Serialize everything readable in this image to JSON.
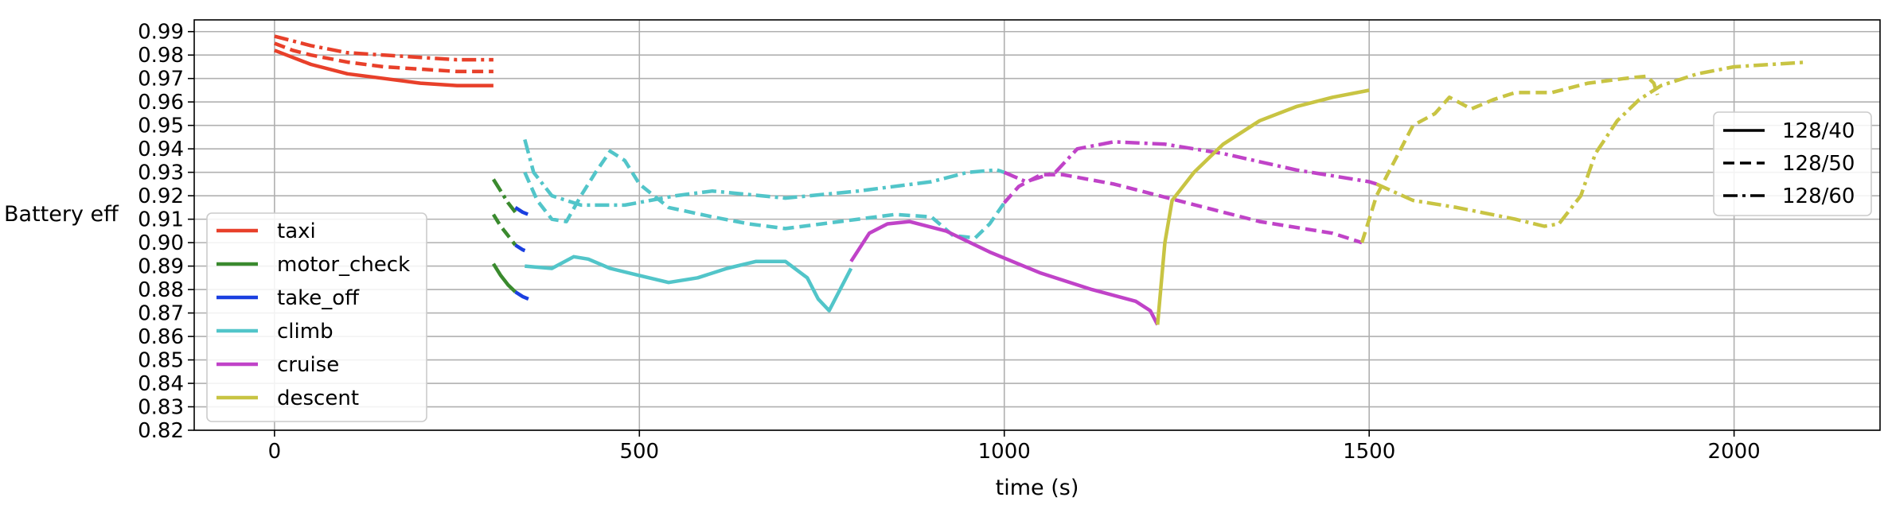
{
  "chart_data": {
    "type": "line",
    "title": "",
    "xlabel": "time (s)",
    "ylabel": "Battery eff",
    "xlim": [
      -110,
      2200
    ],
    "ylim": [
      0.82,
      0.995
    ],
    "xticks": [
      0,
      500,
      1000,
      1500,
      2000
    ],
    "yticks": [
      0.82,
      0.83,
      0.84,
      0.85,
      0.86,
      0.87,
      0.88,
      0.89,
      0.9,
      0.91,
      0.92,
      0.93,
      0.94,
      0.95,
      0.96,
      0.97,
      0.98,
      0.99
    ],
    "xtick_labels": [
      "0",
      "500",
      "1000",
      "1500",
      "2000"
    ],
    "ytick_labels": [
      "0.82",
      "0.83",
      "0.84",
      "0.85",
      "0.86",
      "0.87",
      "0.88",
      "0.89",
      "0.90",
      "0.91",
      "0.92",
      "0.93",
      "0.94",
      "0.95",
      "0.96",
      "0.97",
      "0.98",
      "0.99"
    ],
    "grid": true,
    "phase_legend": {
      "placement": "lower-left",
      "entries": [
        {
          "name": "taxi",
          "color": "#e8402a"
        },
        {
          "name": "motor_check",
          "color": "#3a8a2e"
        },
        {
          "name": "take_off",
          "color": "#1a3fe0"
        },
        {
          "name": "climb",
          "color": "#52c5c9"
        },
        {
          "name": "cruise",
          "color": "#c043c8"
        },
        {
          "name": "descent",
          "color": "#c8c443"
        }
      ]
    },
    "style_legend": {
      "placement": "center-right",
      "entries": [
        {
          "name": "128/40",
          "dash": "solid"
        },
        {
          "name": "128/50",
          "dash": "dashed"
        },
        {
          "name": "128/60",
          "dash": "dashdot"
        }
      ]
    },
    "series": [
      {
        "phase": "taxi",
        "config": "128/40",
        "color": "#e8402a",
        "dash": "solid",
        "points": [
          [
            0,
            0.982
          ],
          [
            25,
            0.979
          ],
          [
            50,
            0.976
          ],
          [
            100,
            0.972
          ],
          [
            150,
            0.97
          ],
          [
            200,
            0.968
          ],
          [
            250,
            0.967
          ],
          [
            300,
            0.967
          ]
        ]
      },
      {
        "phase": "taxi",
        "config": "128/50",
        "color": "#e8402a",
        "dash": "dashed",
        "points": [
          [
            0,
            0.985
          ],
          [
            25,
            0.982
          ],
          [
            50,
            0.98
          ],
          [
            100,
            0.977
          ],
          [
            150,
            0.975
          ],
          [
            200,
            0.974
          ],
          [
            250,
            0.973
          ],
          [
            300,
            0.973
          ]
        ]
      },
      {
        "phase": "taxi",
        "config": "128/60",
        "color": "#e8402a",
        "dash": "dashdot",
        "points": [
          [
            0,
            0.988
          ],
          [
            25,
            0.986
          ],
          [
            50,
            0.984
          ],
          [
            100,
            0.981
          ],
          [
            150,
            0.98
          ],
          [
            200,
            0.979
          ],
          [
            250,
            0.978
          ],
          [
            300,
            0.978
          ]
        ]
      },
      {
        "phase": "motor_check",
        "config": "128/40",
        "color": "#3a8a2e",
        "dash": "solid",
        "points": [
          [
            300,
            0.891
          ],
          [
            310,
            0.886
          ],
          [
            320,
            0.882
          ],
          [
            330,
            0.879
          ]
        ]
      },
      {
        "phase": "motor_check",
        "config": "128/50",
        "color": "#3a8a2e",
        "dash": "dashed",
        "points": [
          [
            300,
            0.912
          ],
          [
            310,
            0.907
          ],
          [
            320,
            0.903
          ],
          [
            330,
            0.899
          ]
        ]
      },
      {
        "phase": "motor_check",
        "config": "128/60",
        "color": "#3a8a2e",
        "dash": "dashdot",
        "points": [
          [
            300,
            0.927
          ],
          [
            310,
            0.922
          ],
          [
            320,
            0.917
          ],
          [
            330,
            0.913
          ]
        ]
      },
      {
        "phase": "take_off",
        "config": "128/40",
        "color": "#1a3fe0",
        "dash": "solid",
        "points": [
          [
            330,
            0.879
          ],
          [
            340,
            0.877
          ],
          [
            348,
            0.876
          ]
        ]
      },
      {
        "phase": "take_off",
        "config": "128/50",
        "color": "#1a3fe0",
        "dash": "dashed",
        "points": [
          [
            330,
            0.899
          ],
          [
            340,
            0.897
          ],
          [
            348,
            0.896
          ]
        ]
      },
      {
        "phase": "take_off",
        "config": "128/60",
        "color": "#1a3fe0",
        "dash": "dashdot",
        "points": [
          [
            330,
            0.915
          ],
          [
            340,
            0.913
          ],
          [
            348,
            0.912
          ]
        ]
      },
      {
        "phase": "climb",
        "config": "128/40",
        "color": "#52c5c9",
        "dash": "solid",
        "points": [
          [
            343,
            0.89
          ],
          [
            380,
            0.889
          ],
          [
            410,
            0.894
          ],
          [
            430,
            0.893
          ],
          [
            460,
            0.889
          ],
          [
            500,
            0.886
          ],
          [
            540,
            0.883
          ],
          [
            580,
            0.885
          ],
          [
            620,
            0.889
          ],
          [
            660,
            0.892
          ],
          [
            700,
            0.892
          ],
          [
            730,
            0.885
          ],
          [
            745,
            0.876
          ],
          [
            760,
            0.871
          ],
          [
            775,
            0.88
          ],
          [
            790,
            0.889
          ]
        ]
      },
      {
        "phase": "climb",
        "config": "128/50",
        "color": "#52c5c9",
        "dash": "dashed",
        "points": [
          [
            343,
            0.93
          ],
          [
            360,
            0.918
          ],
          [
            380,
            0.91
          ],
          [
            400,
            0.909
          ],
          [
            420,
            0.92
          ],
          [
            440,
            0.93
          ],
          [
            460,
            0.939
          ],
          [
            480,
            0.935
          ],
          [
            500,
            0.925
          ],
          [
            540,
            0.915
          ],
          [
            600,
            0.911
          ],
          [
            650,
            0.908
          ],
          [
            700,
            0.906
          ],
          [
            750,
            0.908
          ],
          [
            800,
            0.91
          ],
          [
            850,
            0.912
          ],
          [
            900,
            0.911
          ],
          [
            930,
            0.903
          ],
          [
            960,
            0.902
          ],
          [
            980,
            0.908
          ],
          [
            1000,
            0.917
          ]
        ]
      },
      {
        "phase": "climb",
        "config": "128/60",
        "color": "#52c5c9",
        "dash": "dashdot",
        "points": [
          [
            343,
            0.944
          ],
          [
            355,
            0.93
          ],
          [
            380,
            0.92
          ],
          [
            420,
            0.916
          ],
          [
            480,
            0.916
          ],
          [
            550,
            0.92
          ],
          [
            600,
            0.922
          ],
          [
            700,
            0.919
          ],
          [
            800,
            0.922
          ],
          [
            900,
            0.926
          ],
          [
            950,
            0.93
          ],
          [
            990,
            0.931
          ],
          [
            1000,
            0.93
          ]
        ]
      },
      {
        "phase": "cruise",
        "config": "128/40",
        "color": "#c043c8",
        "dash": "solid",
        "points": [
          [
            790,
            0.892
          ],
          [
            815,
            0.904
          ],
          [
            840,
            0.908
          ],
          [
            870,
            0.909
          ],
          [
            920,
            0.905
          ],
          [
            980,
            0.896
          ],
          [
            1050,
            0.887
          ],
          [
            1120,
            0.88
          ],
          [
            1180,
            0.875
          ],
          [
            1200,
            0.871
          ],
          [
            1210,
            0.865
          ]
        ]
      },
      {
        "phase": "cruise",
        "config": "128/50",
        "color": "#c043c8",
        "dash": "dashed",
        "points": [
          [
            1000,
            0.917
          ],
          [
            1020,
            0.924
          ],
          [
            1050,
            0.929
          ],
          [
            1080,
            0.929
          ],
          [
            1150,
            0.925
          ],
          [
            1250,
            0.917
          ],
          [
            1350,
            0.909
          ],
          [
            1450,
            0.904
          ],
          [
            1490,
            0.9
          ]
        ]
      },
      {
        "phase": "cruise",
        "config": "128/60",
        "color": "#c043c8",
        "dash": "dashdot",
        "points": [
          [
            1000,
            0.93
          ],
          [
            1030,
            0.926
          ],
          [
            1070,
            0.93
          ],
          [
            1100,
            0.94
          ],
          [
            1150,
            0.943
          ],
          [
            1220,
            0.942
          ],
          [
            1300,
            0.938
          ],
          [
            1400,
            0.931
          ],
          [
            1500,
            0.926
          ],
          [
            1510,
            0.925
          ]
        ]
      },
      {
        "phase": "descent",
        "config": "128/40",
        "color": "#c8c443",
        "dash": "solid",
        "points": [
          [
            1210,
            0.865
          ],
          [
            1220,
            0.9
          ],
          [
            1230,
            0.918
          ],
          [
            1260,
            0.93
          ],
          [
            1300,
            0.942
          ],
          [
            1350,
            0.952
          ],
          [
            1400,
            0.958
          ],
          [
            1450,
            0.962
          ],
          [
            1500,
            0.965
          ]
        ]
      },
      {
        "phase": "descent",
        "config": "128/50",
        "color": "#c8c443",
        "dash": "dashed",
        "points": [
          [
            1490,
            0.9
          ],
          [
            1510,
            0.92
          ],
          [
            1540,
            0.938
          ],
          [
            1560,
            0.95
          ],
          [
            1590,
            0.955
          ],
          [
            1610,
            0.962
          ],
          [
            1640,
            0.957
          ],
          [
            1670,
            0.961
          ],
          [
            1700,
            0.964
          ],
          [
            1750,
            0.964
          ],
          [
            1800,
            0.968
          ],
          [
            1850,
            0.97
          ],
          [
            1880,
            0.971
          ],
          [
            1890,
            0.968
          ],
          [
            1895,
            0.963
          ]
        ]
      },
      {
        "phase": "descent",
        "config": "128/60",
        "color": "#c8c443",
        "dash": "dashdot",
        "points": [
          [
            1510,
            0.925
          ],
          [
            1560,
            0.918
          ],
          [
            1620,
            0.915
          ],
          [
            1700,
            0.91
          ],
          [
            1740,
            0.907
          ],
          [
            1760,
            0.908
          ],
          [
            1790,
            0.92
          ],
          [
            1810,
            0.938
          ],
          [
            1840,
            0.952
          ],
          [
            1870,
            0.961
          ],
          [
            1900,
            0.967
          ],
          [
            1950,
            0.972
          ],
          [
            2000,
            0.975
          ],
          [
            2100,
            0.977
          ]
        ]
      }
    ]
  }
}
